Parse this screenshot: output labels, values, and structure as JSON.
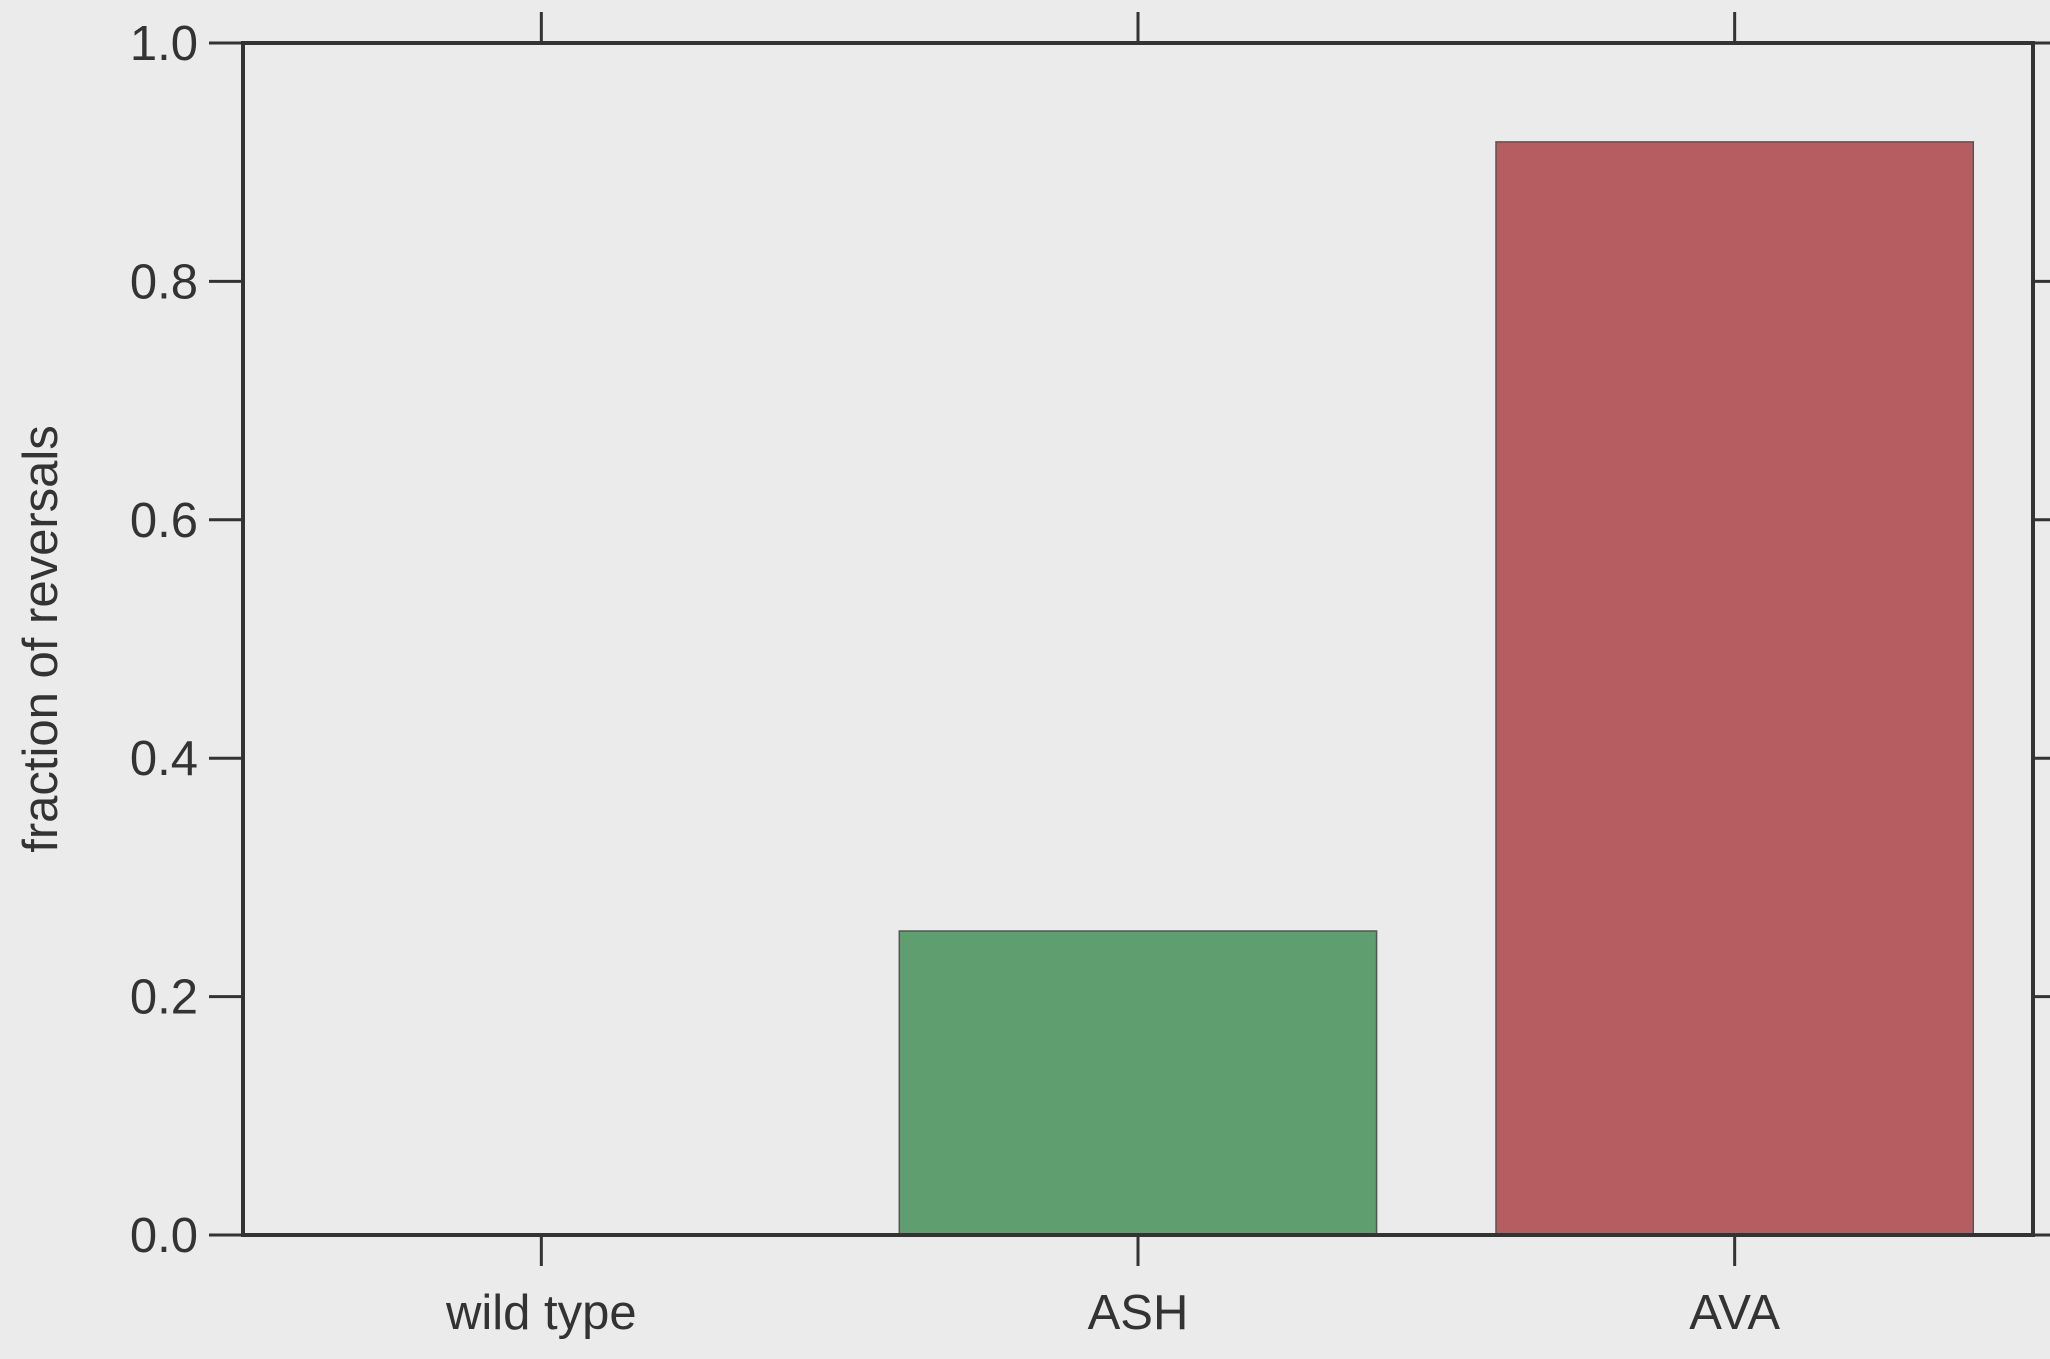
{
  "colors": {
    "background": "#ebebeb",
    "axis": "#333333",
    "bar_wild_type": "#4c72b0",
    "bar_ASH": "#5f9e6e",
    "bar_AVA": "#b55d60",
    "bar_edge": "#555555"
  },
  "chart_data": {
    "type": "bar",
    "categories": [
      "wild type",
      "ASH",
      "AVA"
    ],
    "values": [
      0.0,
      0.255,
      0.917
    ],
    "title": "",
    "xlabel": "",
    "ylabel": "fraction of reversals",
    "ylim": [
      0,
      1.0
    ],
    "yticks": [
      "0.0",
      "0.2",
      "0.4",
      "0.6",
      "0.8",
      "1.0"
    ],
    "grid": false,
    "legend": "none"
  }
}
